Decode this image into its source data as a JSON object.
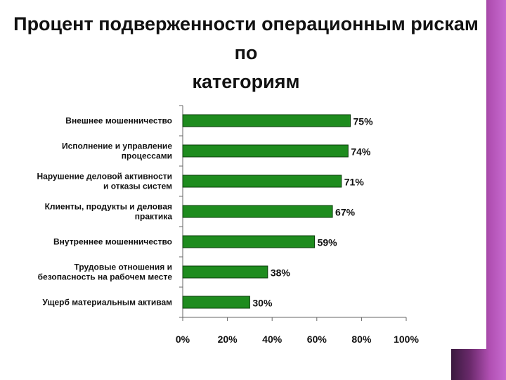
{
  "slide": {
    "title_line1": "Процент подверженности операционным рискам по",
    "title_line2": "категориям"
  },
  "colors": {
    "bar": "#1e8c1e",
    "bar_stroke": "#0b3d0b",
    "accent_band": "#8a3a8c"
  },
  "chart_data": {
    "type": "bar",
    "orientation": "horizontal",
    "categories": [
      [
        "Внешнее мошенничество"
      ],
      [
        "Исполнение и управление",
        "процессами"
      ],
      [
        "Нарушение деловой активности",
        "и отказы систем"
      ],
      [
        "Клиенты, продукты и деловая",
        "практика"
      ],
      [
        "Внутреннее мошенничество"
      ],
      [
        "Трудовые отношения и",
        "безопасность на рабочем месте"
      ],
      [
        "Ущерб материальным активам"
      ]
    ],
    "values": [
      75,
      74,
      71,
      67,
      59,
      38,
      30
    ],
    "value_labels": [
      "75%",
      "74%",
      "71%",
      "67%",
      "59%",
      "38%",
      "30%"
    ],
    "xlim": [
      0,
      100
    ],
    "x_ticks": [
      0,
      20,
      40,
      60,
      80,
      100
    ],
    "x_tick_labels": [
      "0%",
      "20%",
      "40%",
      "60%",
      "80%",
      "100%"
    ],
    "grid": false,
    "legend": "none"
  }
}
